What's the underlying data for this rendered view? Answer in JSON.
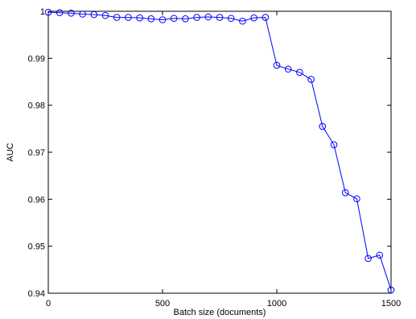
{
  "chart_data": {
    "type": "line",
    "title": "",
    "xlabel": "Batch size (documents)",
    "ylabel": "AUC",
    "xlim": [
      0,
      1500
    ],
    "ylim": [
      0.94,
      1.0
    ],
    "xticks": [
      0,
      500,
      1000,
      1500
    ],
    "xtick_labels": [
      "0",
      "500",
      "1000",
      "1500"
    ],
    "yticks": [
      0.94,
      0.95,
      0.96,
      0.97,
      0.98,
      0.99,
      1.0
    ],
    "ytick_labels": [
      "0.94",
      "0.95",
      "0.96",
      "0.97",
      "0.98",
      "0.99",
      "1"
    ],
    "grid": false,
    "legend": "none",
    "series": [
      {
        "color": "#0000ff",
        "marker": "circle-open",
        "x": [
          0,
          50,
          100,
          150,
          200,
          250,
          300,
          350,
          400,
          450,
          500,
          550,
          600,
          650,
          700,
          750,
          800,
          850,
          900,
          950,
          1000,
          1050,
          1100,
          1150,
          1200,
          1250,
          1300,
          1350,
          1400,
          1450,
          1500
        ],
        "y": [
          0.9998,
          0.9997,
          0.9996,
          0.9994,
          0.9993,
          0.9991,
          0.9987,
          0.9987,
          0.9986,
          0.9984,
          0.9982,
          0.9985,
          0.9984,
          0.9987,
          0.9988,
          0.9987,
          0.9985,
          0.9979,
          0.9986,
          0.9987,
          0.9885,
          0.9877,
          0.987,
          0.9855,
          0.9755,
          0.9716,
          0.9614,
          0.9601,
          0.9474,
          0.9481,
          0.9407
        ]
      }
    ]
  }
}
